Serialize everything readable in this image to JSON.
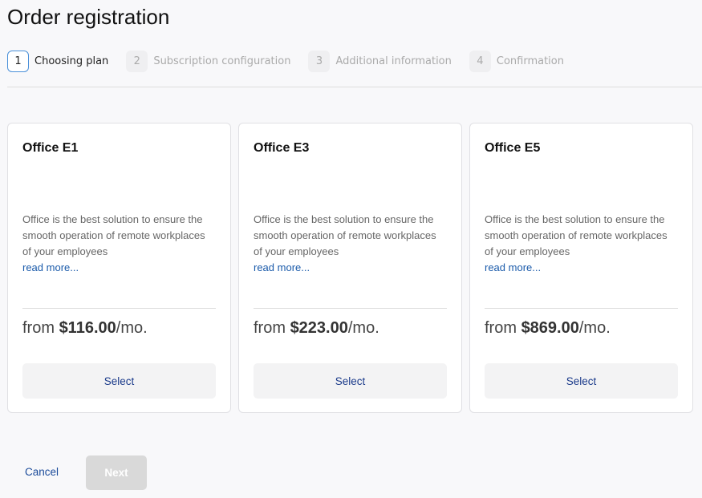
{
  "title": "Order registration",
  "steps": [
    {
      "num": "1",
      "label": "Choosing plan"
    },
    {
      "num": "2",
      "label": "Subscription configuration"
    },
    {
      "num": "3",
      "label": "Additional information"
    },
    {
      "num": "4",
      "label": "Confirmation"
    }
  ],
  "plans": [
    {
      "name": "Office E1",
      "description": "Office is the best solution to ensure the smooth operation of remote workplaces of your employees",
      "read_more": "read more...",
      "from": "from ",
      "price": "$116.00",
      "per": "/mo.",
      "select": "Select"
    },
    {
      "name": "Office E3",
      "description": "Office is the best solution to ensure the smooth operation of remote workplaces of your employees",
      "read_more": "read more...",
      "from": "from ",
      "price": "$223.00",
      "per": "/mo.",
      "select": "Select"
    },
    {
      "name": "Office E5",
      "description": "Office is the best solution to ensure the smooth operation of remote workplaces of your employees",
      "read_more": "read more...",
      "from": "from ",
      "price": "$869.00",
      "per": "/mo.",
      "select": "Select"
    }
  ],
  "footer": {
    "cancel": "Cancel",
    "next": "Next"
  },
  "colors": {
    "accent": "#1a4a9a",
    "active_step_border": "#4a90d9"
  }
}
